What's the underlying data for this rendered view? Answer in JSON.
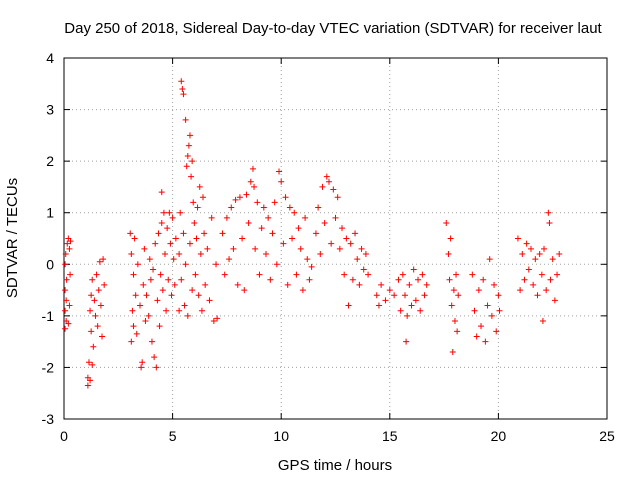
{
  "chart_data": {
    "type": "scatter",
    "title": "Day 250 of 2018, Sidereal Day-to-day VTEC variation (SDTVAR) for receiver laut",
    "xlabel": "GPS time / hours",
    "ylabel": "SDTVAR / TECUs",
    "xlim": [
      0,
      25
    ],
    "ylim": [
      -3,
      4
    ],
    "xticks": [
      0,
      5,
      10,
      15,
      20,
      25
    ],
    "yticks": [
      -3,
      -2,
      -1,
      0,
      1,
      2,
      3,
      4
    ],
    "xtick_labels": [
      "0",
      "5",
      "10",
      "15",
      "20",
      "25"
    ],
    "ytick_labels": [
      "-3",
      "-2",
      "-1",
      "0",
      "1",
      "2",
      "3",
      "4"
    ],
    "grid": true,
    "marker": "+",
    "color": "#ff0000",
    "series": [
      {
        "name": "SDTVAR",
        "points": [
          [
            0.05,
            -1.25
          ],
          [
            0.05,
            -0.9
          ],
          [
            0.05,
            -0.5
          ],
          [
            0.05,
            0.0
          ],
          [
            0.08,
            0.2
          ],
          [
            0.1,
            -1.1
          ],
          [
            0.1,
            -0.7
          ],
          [
            0.12,
            -0.3
          ],
          [
            0.15,
            0.4
          ],
          [
            0.2,
            0.5
          ],
          [
            0.2,
            -1.15
          ],
          [
            0.25,
            -0.8
          ],
          [
            0.25,
            0.3
          ],
          [
            0.28,
            -0.2
          ],
          [
            0.3,
            0.45
          ],
          [
            1.1,
            -2.35
          ],
          [
            1.1,
            -2.2
          ],
          [
            1.15,
            -1.9
          ],
          [
            1.2,
            -2.25
          ],
          [
            1.2,
            -0.9
          ],
          [
            1.25,
            -0.6
          ],
          [
            1.25,
            -1.3
          ],
          [
            1.3,
            -1.95
          ],
          [
            1.3,
            -0.3
          ],
          [
            1.35,
            -1.6
          ],
          [
            1.4,
            -0.7
          ],
          [
            1.45,
            -1.0
          ],
          [
            1.5,
            -0.2
          ],
          [
            1.55,
            -1.2
          ],
          [
            1.6,
            -0.5
          ],
          [
            1.65,
            0.05
          ],
          [
            1.7,
            -0.8
          ],
          [
            1.75,
            -1.4
          ],
          [
            1.8,
            0.1
          ],
          [
            1.85,
            -0.4
          ],
          [
            3.05,
            0.6
          ],
          [
            3.1,
            -1.5
          ],
          [
            3.1,
            0.2
          ],
          [
            3.15,
            -0.9
          ],
          [
            3.2,
            -1.2
          ],
          [
            3.2,
            -0.2
          ],
          [
            3.25,
            0.5
          ],
          [
            3.3,
            -0.6
          ],
          [
            3.35,
            -1.35
          ],
          [
            3.4,
            0.0
          ],
          [
            3.5,
            -0.8
          ],
          [
            3.55,
            -2.0
          ],
          [
            3.6,
            -1.9
          ],
          [
            3.65,
            -0.4
          ],
          [
            3.7,
            0.3
          ],
          [
            3.75,
            -1.1
          ],
          [
            3.8,
            -0.6
          ],
          [
            3.9,
            -1.0
          ],
          [
            3.95,
            0.1
          ],
          [
            4.0,
            -0.3
          ],
          [
            4.05,
            -1.5
          ],
          [
            4.1,
            -0.1
          ],
          [
            4.15,
            -1.8
          ],
          [
            4.2,
            0.4
          ],
          [
            4.25,
            -2.0
          ],
          [
            4.3,
            -0.7
          ],
          [
            4.35,
            0.6
          ],
          [
            4.4,
            -1.2
          ],
          [
            4.45,
            -0.2
          ],
          [
            4.5,
            1.4
          ],
          [
            4.5,
            0.8
          ],
          [
            4.55,
            -0.5
          ],
          [
            4.6,
            1.0
          ],
          [
            4.65,
            0.2
          ],
          [
            4.7,
            -0.9
          ],
          [
            4.75,
            0.7
          ],
          [
            4.8,
            -0.3
          ],
          [
            4.85,
            1.0
          ],
          [
            4.9,
            0.4
          ],
          [
            4.95,
            -0.6
          ],
          [
            5.0,
            0.9
          ],
          [
            5.05,
            0.1
          ],
          [
            5.1,
            -0.4
          ],
          [
            5.15,
            0.5
          ],
          [
            5.3,
            -0.9
          ],
          [
            5.3,
            0.2
          ],
          [
            5.35,
            1.0
          ],
          [
            5.4,
            -0.3
          ],
          [
            5.4,
            3.55
          ],
          [
            5.45,
            3.4
          ],
          [
            5.5,
            3.3
          ],
          [
            5.5,
            0.6
          ],
          [
            5.55,
            -0.8
          ],
          [
            5.6,
            2.8
          ],
          [
            5.6,
            0.0
          ],
          [
            5.65,
            1.9
          ],
          [
            5.7,
            2.1
          ],
          [
            5.7,
            -1.0
          ],
          [
            5.75,
            2.3
          ],
          [
            5.8,
            2.5
          ],
          [
            5.8,
            0.4
          ],
          [
            5.85,
            1.7
          ],
          [
            5.9,
            2.0
          ],
          [
            5.9,
            -0.5
          ],
          [
            5.95,
            1.2
          ],
          [
            6.0,
            0.8
          ],
          [
            6.05,
            -0.2
          ],
          [
            6.1,
            0.5
          ],
          [
            6.15,
            1.1
          ],
          [
            6.2,
            -0.6
          ],
          [
            6.25,
            1.5
          ],
          [
            6.3,
            0.2
          ],
          [
            6.35,
            -0.9
          ],
          [
            6.4,
            1.3
          ],
          [
            6.45,
            0.6
          ],
          [
            6.5,
            -0.4
          ],
          [
            6.6,
            0.3
          ],
          [
            6.7,
            -0.7
          ],
          [
            6.8,
            0.9
          ],
          [
            6.9,
            -1.1
          ],
          [
            7.0,
            0.0
          ],
          [
            7.05,
            -1.05
          ],
          [
            7.3,
            0.6
          ],
          [
            7.4,
            -0.2
          ],
          [
            7.5,
            0.9
          ],
          [
            7.6,
            0.1
          ],
          [
            7.7,
            1.1
          ],
          [
            7.8,
            0.3
          ],
          [
            7.9,
            1.25
          ],
          [
            8.0,
            -0.4
          ],
          [
            8.1,
            1.3
          ],
          [
            8.2,
            0.5
          ],
          [
            8.3,
            -0.5
          ],
          [
            8.4,
            1.35
          ],
          [
            8.5,
            0.8
          ],
          [
            8.6,
            1.6
          ],
          [
            8.7,
            1.85
          ],
          [
            8.75,
            1.5
          ],
          [
            8.8,
            0.3
          ],
          [
            8.9,
            1.2
          ],
          [
            9.0,
            -0.2
          ],
          [
            9.1,
            0.7
          ],
          [
            9.2,
            1.1
          ],
          [
            9.3,
            0.2
          ],
          [
            9.4,
            0.9
          ],
          [
            9.5,
            -0.3
          ],
          [
            9.6,
            0.6
          ],
          [
            9.7,
            1.2
          ],
          [
            9.8,
            0.0
          ],
          [
            9.9,
            1.8
          ],
          [
            10.0,
            1.6
          ],
          [
            10.1,
            0.4
          ],
          [
            10.2,
            1.3
          ],
          [
            10.3,
            -0.4
          ],
          [
            10.4,
            1.1
          ],
          [
            10.5,
            0.5
          ],
          [
            10.6,
            1.0
          ],
          [
            10.7,
            -0.2
          ],
          [
            10.8,
            0.7
          ],
          [
            10.9,
            0.3
          ],
          [
            11.0,
            -0.5
          ],
          [
            11.1,
            0.9
          ],
          [
            11.2,
            0.1
          ],
          [
            11.3,
            -0.3
          ],
          [
            11.4,
            -0.05
          ],
          [
            11.6,
            0.6
          ],
          [
            11.7,
            1.1
          ],
          [
            11.8,
            0.2
          ],
          [
            11.9,
            1.5
          ],
          [
            12.0,
            0.8
          ],
          [
            12.1,
            1.7
          ],
          [
            12.2,
            1.6
          ],
          [
            12.3,
            0.4
          ],
          [
            12.4,
            1.45
          ],
          [
            12.5,
            0.9
          ],
          [
            12.6,
            1.3
          ],
          [
            12.7,
            0.3
          ],
          [
            12.8,
            0.7
          ],
          [
            12.9,
            -0.2
          ],
          [
            13.0,
            0.5
          ],
          [
            13.1,
            -0.8
          ],
          [
            13.2,
            0.4
          ],
          [
            13.3,
            -0.3
          ],
          [
            13.4,
            0.6
          ],
          [
            13.5,
            0.1
          ],
          [
            13.6,
            -0.4
          ],
          [
            13.7,
            0.3
          ],
          [
            13.8,
            -0.1
          ],
          [
            13.9,
            0.2
          ],
          [
            14.0,
            -0.2
          ],
          [
            14.4,
            -0.6
          ],
          [
            14.5,
            -0.8
          ],
          [
            14.6,
            -0.4
          ],
          [
            14.8,
            -0.7
          ],
          [
            15.0,
            -0.5
          ],
          [
            15.2,
            -0.6
          ],
          [
            15.4,
            -0.3
          ],
          [
            15.5,
            -0.9
          ],
          [
            15.6,
            -0.2
          ],
          [
            15.7,
            -0.6
          ],
          [
            15.75,
            -1.5
          ],
          [
            15.8,
            -1.0
          ],
          [
            15.9,
            -0.4
          ],
          [
            16.0,
            -0.8
          ],
          [
            16.1,
            -0.1
          ],
          [
            16.2,
            -0.7
          ],
          [
            16.3,
            -0.3
          ],
          [
            16.4,
            -0.9
          ],
          [
            16.5,
            -0.2
          ],
          [
            16.6,
            -0.6
          ],
          [
            16.7,
            -0.4
          ],
          [
            17.6,
            0.8
          ],
          [
            17.7,
            0.2
          ],
          [
            17.75,
            -0.3
          ],
          [
            17.8,
            0.5
          ],
          [
            17.85,
            -0.8
          ],
          [
            17.9,
            -1.7
          ],
          [
            17.95,
            -0.5
          ],
          [
            18.0,
            -1.1
          ],
          [
            18.05,
            -0.2
          ],
          [
            18.1,
            -1.3
          ],
          [
            18.15,
            -0.6
          ],
          [
            18.8,
            -0.2
          ],
          [
            18.9,
            -0.9
          ],
          [
            19.0,
            -1.4
          ],
          [
            19.1,
            -0.5
          ],
          [
            19.2,
            -1.2
          ],
          [
            19.3,
            -0.3
          ],
          [
            19.4,
            -1.5
          ],
          [
            19.5,
            -0.8
          ],
          [
            19.6,
            0.1
          ],
          [
            19.7,
            -1.0
          ],
          [
            19.8,
            -0.4
          ],
          [
            19.9,
            -1.3
          ],
          [
            20.0,
            -0.6
          ],
          [
            20.05,
            -0.9
          ],
          [
            20.9,
            0.5
          ],
          [
            21.0,
            -0.5
          ],
          [
            21.1,
            0.2
          ],
          [
            21.2,
            -0.3
          ],
          [
            21.3,
            0.4
          ],
          [
            21.4,
            -0.1
          ],
          [
            21.5,
            0.3
          ],
          [
            21.6,
            -0.4
          ],
          [
            21.7,
            0.1
          ],
          [
            21.8,
            -0.6
          ],
          [
            21.9,
            0.2
          ],
          [
            22.0,
            -0.2
          ],
          [
            22.05,
            -1.1
          ],
          [
            22.1,
            0.3
          ],
          [
            22.2,
            -0.5
          ],
          [
            22.3,
            1.0
          ],
          [
            22.35,
            0.8
          ],
          [
            22.4,
            -0.3
          ],
          [
            22.5,
            0.1
          ],
          [
            22.6,
            -0.7
          ],
          [
            22.7,
            -0.2
          ],
          [
            22.8,
            0.2
          ]
        ]
      }
    ]
  }
}
